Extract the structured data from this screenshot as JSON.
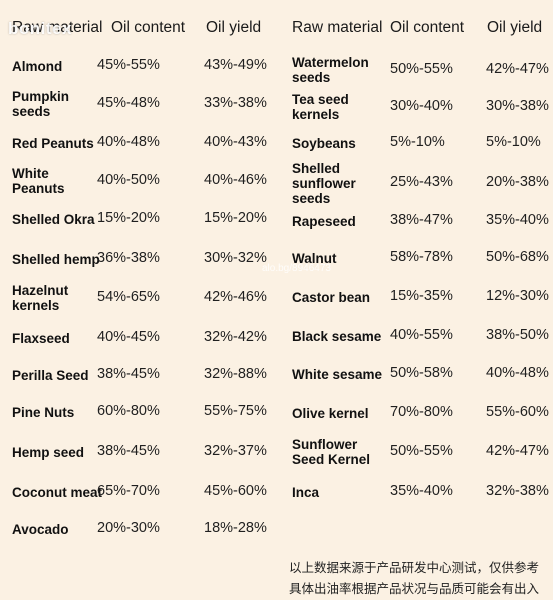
{
  "headers": {
    "raw_material": "Raw material",
    "oil_content": "Oil content",
    "oil_yield": "Oil yield"
  },
  "left_rows": [
    {
      "name": "Almond",
      "content": "45%-55%",
      "yield": "43%-49%"
    },
    {
      "name": "Pumpkin seeds",
      "content": "45%-48%",
      "yield": "33%-38%"
    },
    {
      "name": "Red Peanuts",
      "content": "40%-48%",
      "yield": "40%-43%"
    },
    {
      "name": "White Peanuts",
      "content": "40%-50%",
      "yield": "40%-46%"
    },
    {
      "name": "Shelled Okra",
      "content": "15%-20%",
      "yield": "15%-20%"
    },
    {
      "name": "Shelled hemp",
      "content": "36%-38%",
      "yield": "30%-32%"
    },
    {
      "name": "Hazelnut kernels",
      "content": "54%-65%",
      "yield": "42%-46%"
    },
    {
      "name": "Flaxseed",
      "content": "40%-45%",
      "yield": "32%-42%"
    },
    {
      "name": "Perilla Seed",
      "content": "38%-45%",
      "yield": "32%-88%"
    },
    {
      "name": "Pine Nuts",
      "content": "60%-80%",
      "yield": "55%-75%"
    },
    {
      "name": "Hemp seed",
      "content": "38%-45%",
      "yield": "32%-37%"
    },
    {
      "name": "Coconut meat",
      "content": "65%-70%",
      "yield": "45%-60%"
    },
    {
      "name": "Avocado",
      "content": "20%-30%",
      "yield": "18%-28%"
    }
  ],
  "right_rows": [
    {
      "name": "Watermelon seeds",
      "content": "50%-55%",
      "yield": "42%-47%"
    },
    {
      "name": "Tea seed kernels",
      "content": "30%-40%",
      "yield": "30%-38%"
    },
    {
      "name": "Soybeans",
      "content": "5%-10%",
      "yield": "5%-10%"
    },
    {
      "name": "Shelled sunflower seeds",
      "content": "25%-43%",
      "yield": "20%-38%"
    },
    {
      "name": "Rapeseed",
      "content": "38%-47%",
      "yield": "35%-40%"
    },
    {
      "name": "Walnut",
      "content": "58%-78%",
      "yield": "50%-68%"
    },
    {
      "name": "Castor bean",
      "content": "15%-35%",
      "yield": "12%-30%"
    },
    {
      "name": "Black sesame",
      "content": "40%-55%",
      "yield": "38%-50%"
    },
    {
      "name": "White sesame",
      "content": "50%-58%",
      "yield": "40%-48%"
    },
    {
      "name": "Olive kernel",
      "content": "70%-80%",
      "yield": "55%-60%"
    },
    {
      "name": "Sunflower Seed Kernel",
      "content": "50%-55%",
      "yield": "42%-47%"
    },
    {
      "name": "Inca",
      "content": "35%-40%",
      "yield": "32%-38%"
    }
  ],
  "watermark": "bonitex",
  "watermark_small": "alo.bg/8946473",
  "note_line1": "以上数据来源于产品研发中心测试，仅供参考",
  "note_line2": "具体出油率根据产品状况与品质可能会有出入",
  "colors": {
    "background": "#fbf1e3",
    "text": "#1a1a1a"
  }
}
